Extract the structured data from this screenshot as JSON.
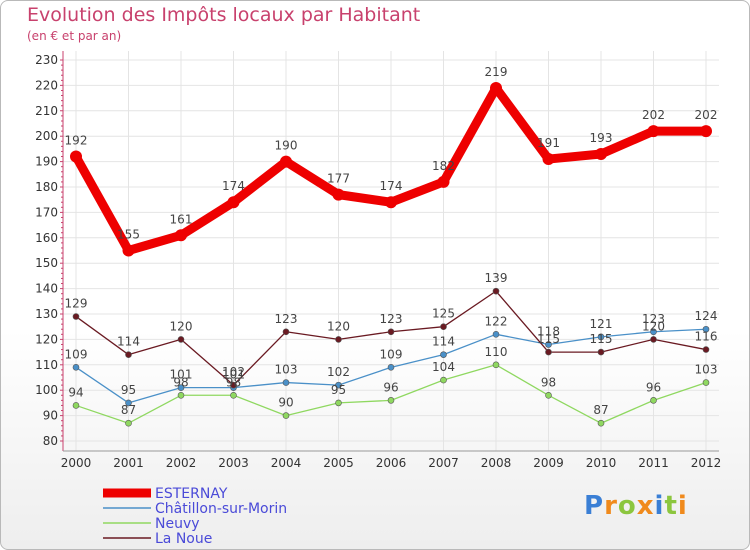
{
  "chart_data": {
    "type": "line",
    "title": "Evolution des Impôts locaux par Habitant",
    "subtitle": "(en € et par an)",
    "x": [
      "2000",
      "2001",
      "2002",
      "2003",
      "2004",
      "2005",
      "2006",
      "2007",
      "2008",
      "2009",
      "2010",
      "2011",
      "2012"
    ],
    "ylim": [
      80,
      230
    ],
    "yticks": [
      80,
      90,
      100,
      110,
      120,
      130,
      140,
      150,
      160,
      170,
      180,
      190,
      200,
      210,
      220,
      230
    ],
    "grid": true,
    "legend_position": "bottom-left",
    "series": [
      {
        "name": "ESTERNAY",
        "color": "#ee0000",
        "values": [
          192,
          155,
          161,
          174,
          190,
          177,
          174,
          182,
          219,
          191,
          193,
          202,
          202
        ]
      },
      {
        "name": "Châtillon-sur-Morin",
        "color": "#4a90c8",
        "values": [
          109,
          95,
          101,
          101,
          103,
          102,
          109,
          114,
          122,
          118,
          121,
          123,
          124
        ]
      },
      {
        "name": "Neuvy",
        "color": "#8fd860",
        "values": [
          94,
          87,
          98,
          98,
          90,
          95,
          96,
          104,
          110,
          98,
          87,
          96,
          103
        ]
      },
      {
        "name": "La Noue",
        "color": "#6a1a22",
        "values": [
          129,
          114,
          120,
          102,
          123,
          120,
          123,
          125,
          139,
          115,
          115,
          120,
          116
        ]
      }
    ]
  },
  "logo": {
    "letters": [
      "P",
      "r",
      "o",
      "x",
      "i",
      "t",
      "i"
    ],
    "colors": [
      "#3a7fd5",
      "#f08a1c",
      "#8cc63e",
      "#f08a1c",
      "#3a7fd5",
      "#8cc63e",
      "#f08a1c"
    ]
  }
}
